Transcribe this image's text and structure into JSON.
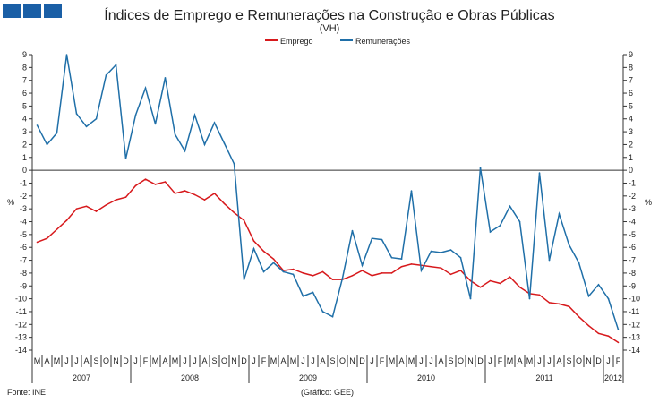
{
  "chart_data": {
    "type": "line",
    "title": "Índices de Emprego e Remunerações na Construção e Obras Públicas",
    "subtitle": "(VH)",
    "ylabel_left": "%",
    "ylabel_right": "%",
    "ylim": [
      -14,
      9
    ],
    "yticks": [
      9,
      8,
      7,
      6,
      5,
      4,
      3,
      2,
      1,
      0,
      -1,
      -2,
      -3,
      -4,
      -5,
      -6,
      -7,
      -8,
      -9,
      -10,
      -11,
      -12,
      -13,
      -14
    ],
    "months": [
      "M",
      "A",
      "M",
      "J",
      "J",
      "A",
      "S",
      "O",
      "N",
      "D",
      "J",
      "F",
      "M",
      "A",
      "M",
      "J",
      "J",
      "A",
      "S",
      "O",
      "N",
      "D",
      "J",
      "F",
      "M",
      "A",
      "M",
      "J",
      "J",
      "A",
      "S",
      "O",
      "N",
      "D",
      "J",
      "F",
      "M",
      "A",
      "M",
      "J",
      "J",
      "A",
      "S",
      "O",
      "N",
      "D",
      "J",
      "F",
      "M",
      "A",
      "M",
      "J",
      "J",
      "A",
      "S",
      "O",
      "N",
      "D",
      "J",
      "F"
    ],
    "years": [
      {
        "label": "2007",
        "months": 10
      },
      {
        "label": "2008",
        "months": 12
      },
      {
        "label": "2009",
        "months": 12
      },
      {
        "label": "2010",
        "months": 12
      },
      {
        "label": "2011",
        "months": 12
      },
      {
        "label": "2012",
        "months": 2
      }
    ],
    "legend": "top-center",
    "series": [
      {
        "name": "Emprego",
        "color": "#d7191c",
        "values": [
          -5.6,
          -5.3,
          -4.6,
          -3.9,
          -3.0,
          -2.8,
          -3.2,
          -2.7,
          -2.3,
          -2.1,
          -1.2,
          -0.7,
          -1.1,
          -0.9,
          -1.8,
          -1.6,
          -1.9,
          -2.3,
          -1.8,
          -2.6,
          -3.3,
          -3.9,
          -5.5,
          -6.3,
          -6.9,
          -7.8,
          -7.7,
          -8.0,
          -8.2,
          -7.9,
          -8.5,
          -8.5,
          -8.2,
          -7.8,
          -8.2,
          -8.0,
          -8.0,
          -7.5,
          -7.3,
          -7.4,
          -7.5,
          -7.6,
          -8.1,
          -7.8,
          -8.6,
          -9.1,
          -8.6,
          -8.8,
          -8.3,
          -9.1,
          -9.6,
          -9.7,
          -10.3,
          -10.4,
          -10.6,
          -11.4,
          -12.1,
          -12.7,
          -12.9,
          -13.4
        ]
      },
      {
        "name": "Remunerações",
        "color": "#1f6fa8",
        "values": [
          3.5,
          2.0,
          2.9,
          9.0,
          4.4,
          3.4,
          4.0,
          7.4,
          8.2,
          0.9,
          4.3,
          6.4,
          3.6,
          7.2,
          2.8,
          1.5,
          4.3,
          2.0,
          3.7,
          2.1,
          0.5,
          -8.5,
          -6.1,
          -7.9,
          -7.2,
          -7.9,
          -8.1,
          -9.8,
          -9.5,
          -11.0,
          -11.4,
          -8.4,
          -4.7,
          -7.4,
          -5.3,
          -5.4,
          -6.8,
          -6.9,
          -1.6,
          -7.8,
          -6.3,
          -6.4,
          -6.2,
          -6.8,
          -10.0,
          0.2,
          -4.8,
          -4.3,
          -2.8,
          -4.0,
          -10.0,
          -0.2,
          -7.0,
          -3.4,
          -5.8,
          -7.2,
          -9.8,
          -8.9,
          -10.0,
          -12.4
        ]
      }
    ],
    "source": "Fonte: INE",
    "credit": "(Gráfico: GEE)"
  }
}
